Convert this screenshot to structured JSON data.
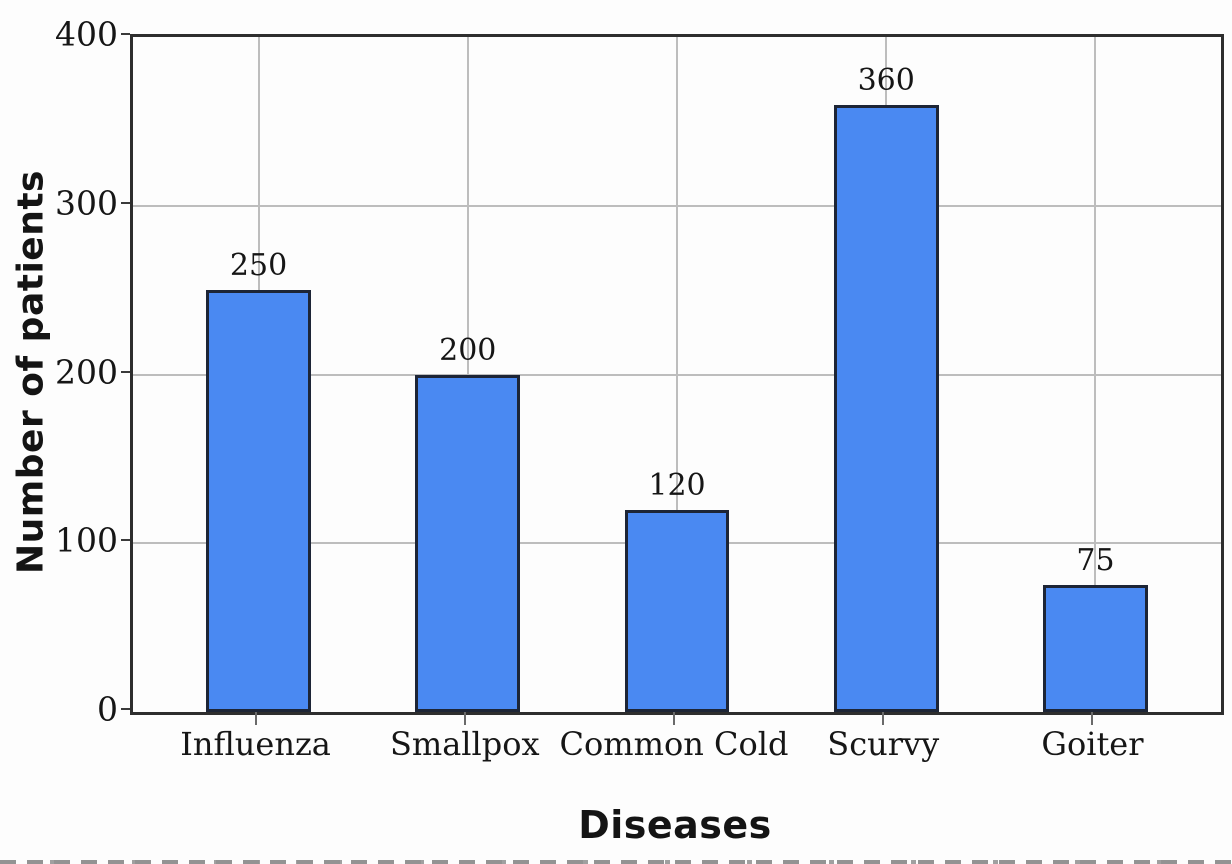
{
  "chart_data": {
    "type": "bar",
    "title": "",
    "xlabel": "Diseases",
    "ylabel": "Number of patients",
    "categories": [
      "Influenza",
      "Smallpox",
      "Common Cold",
      "Scurvy",
      "Goiter"
    ],
    "values": [
      250,
      200,
      120,
      360,
      75
    ],
    "bar_value_labels": [
      "250",
      "200",
      "120",
      "360",
      "75"
    ],
    "ylim": [
      0,
      400
    ],
    "yticks": [
      0,
      100,
      200,
      300,
      400
    ],
    "ytick_labels": [
      "0",
      "100",
      "200",
      "300",
      "400"
    ],
    "grid": true,
    "legend_position": "none",
    "colors": {
      "bar_fill": "#4a89f2",
      "bar_edge": "#1d2536",
      "grid": "#bdbdbd",
      "axis_frame": "#2e2e2e",
      "text": "#161616"
    },
    "layout": {
      "x_margin_units": 0.6,
      "bar_width_units": 0.5
    }
  }
}
